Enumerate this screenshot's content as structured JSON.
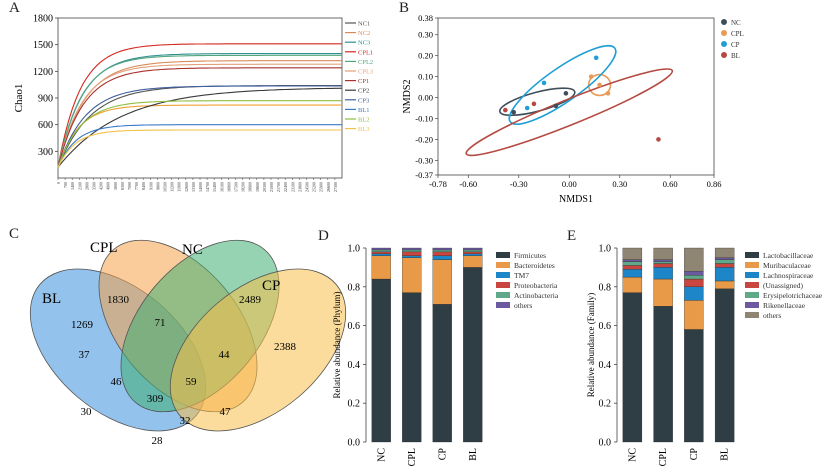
{
  "panel_letters": [
    "A",
    "B",
    "C",
    "D",
    "E"
  ],
  "chart_data": [
    {
      "panel": "A",
      "type": "line",
      "title": "",
      "ylabel": "Chao1",
      "xlabel": "",
      "ylim": [
        0,
        1800
      ],
      "yticks": [
        300,
        600,
        900,
        1200,
        1500,
        1800
      ],
      "x_max": 28000,
      "series": [
        {
          "name": "NC1",
          "plateau": 1040,
          "k": 3200,
          "color": "#555555"
        },
        {
          "name": "NC2",
          "plateau": 1320,
          "k": 2600,
          "color": "#d98a57"
        },
        {
          "name": "NC3",
          "plateau": 1400,
          "k": 2400,
          "color": "#2d8f8f"
        },
        {
          "name": "CPL1",
          "plateau": 1510,
          "k": 2200,
          "color": "#d4281f"
        },
        {
          "name": "CPL2",
          "plateau": 1380,
          "k": 2300,
          "color": "#53a57f"
        },
        {
          "name": "CPL3",
          "plateau": 1280,
          "k": 2400,
          "color": "#e3a07a"
        },
        {
          "name": "CP1",
          "plateau": 1240,
          "k": 2500,
          "color": "#a8322c"
        },
        {
          "name": "CP2",
          "plateau": 1020,
          "k": 6200,
          "color": "#3b3b3b"
        },
        {
          "name": "CP3",
          "plateau": 1035,
          "k": 2700,
          "color": "#3f5f9f"
        },
        {
          "name": "BL1",
          "plateau": 600,
          "k": 1800,
          "color": "#3a7bc8"
        },
        {
          "name": "BL2",
          "plateau": 870,
          "k": 2300,
          "color": "#8fbf3f"
        },
        {
          "name": "BL3",
          "plateau": 540,
          "k": 1700,
          "color": "#f2c24a"
        }
      ],
      "extra_series": [
        {
          "plateau": 820,
          "k": 2000,
          "color": "#f0a030"
        }
      ]
    },
    {
      "panel": "B",
      "type": "scatter",
      "xlabel": "NMDS1",
      "ylabel": "NMDS2",
      "xlim": [
        -0.78,
        0.86
      ],
      "ylim": [
        -0.37,
        0.38
      ],
      "xticks": [
        -0.78,
        -0.6,
        -0.3,
        0.0,
        0.3,
        0.6,
        0.86
      ],
      "xtick_labels": [
        "-0.78",
        "-0.60",
        "-0.30",
        "0.00",
        "0.30",
        "0.60",
        "0.86"
      ],
      "yticks": [
        0.38,
        0.3,
        0.2,
        0.1,
        0.0,
        -0.1,
        -0.2,
        -0.3,
        -0.37
      ],
      "ytick_labels": [
        "0.38",
        "0.30",
        "0.20",
        "0.10",
        "0.00",
        "-0.10",
        "-0.20",
        "-0.30",
        "-0.37"
      ],
      "series": [
        {
          "name": "NC",
          "color": "#3f4f5a",
          "points": [
            [
              -0.33,
              -0.07
            ],
            [
              -0.08,
              -0.04
            ],
            [
              -0.02,
              0.02
            ]
          ],
          "ellipse": {
            "cx": -0.19,
            "cy": -0.02,
            "rx": 0.23,
            "ry": 0.045,
            "angle": -15
          }
        },
        {
          "name": "CPL",
          "color": "#e99a55",
          "points": [
            [
              0.13,
              0.1
            ],
            [
              0.18,
              0.06
            ],
            [
              0.23,
              0.02
            ]
          ],
          "ellipse": {
            "cx": 0.18,
            "cy": 0.06,
            "rx": 0.065,
            "ry": 0.05,
            "angle": 0
          }
        },
        {
          "name": "CP",
          "color": "#1f9fd6",
          "points": [
            [
              -0.15,
              0.07
            ],
            [
              0.16,
              0.19
            ],
            [
              -0.25,
              -0.05
            ]
          ],
          "ellipse": {
            "cx": -0.04,
            "cy": 0.06,
            "rx": 0.38,
            "ry": 0.08,
            "angle": -35
          }
        },
        {
          "name": "BL",
          "color": "#b54a42",
          "points": [
            [
              -0.21,
              -0.03
            ],
            [
              -0.38,
              -0.06
            ],
            [
              0.53,
              -0.2
            ]
          ],
          "ellipse": {
            "cx": 0.0,
            "cy": -0.07,
            "rx": 0.66,
            "ry": 0.06,
            "angle": -22
          }
        }
      ]
    },
    {
      "panel": "C",
      "type": "venn",
      "sets": [
        {
          "name": "BL",
          "color": "#3b8fdc"
        },
        {
          "name": "CPL",
          "color": "#f5a24a"
        },
        {
          "name": "NC",
          "color": "#3fae72"
        },
        {
          "name": "CP",
          "color": "#f7c04a"
        }
      ],
      "counts": {
        "BL": "1269",
        "CPL": "1830",
        "NC": "2489",
        "CP": "2388",
        "BL_CPL": "37",
        "CPL_NC": "71",
        "NC_CP": "44",
        "BL_NC": "30",
        "CPL_CP": "47",
        "BL_CP": "28",
        "BL_CPL_NC": "46",
        "CPL_NC_CP": "59",
        "BL_CPL_CP": "32",
        "all": "309"
      }
    },
    {
      "panel": "D",
      "type": "bar",
      "stacked": true,
      "ylabel": "Relative abundance (Phylum)",
      "ylim": [
        0,
        1.0
      ],
      "yticks": [
        "0.0",
        "0.2",
        "0.4",
        "0.6",
        "0.8",
        "1.0"
      ],
      "categories": [
        "NC",
        "CPL",
        "CP",
        "BL"
      ],
      "series": [
        {
          "name": "Firmicutes",
          "color": "#2f3d45",
          "values": [
            0.84,
            0.77,
            0.71,
            0.9
          ]
        },
        {
          "name": "Bacteroidetes",
          "color": "#e89a48",
          "values": [
            0.12,
            0.18,
            0.23,
            0.06
          ]
        },
        {
          "name": "TM7",
          "color": "#1c86c8",
          "values": [
            0.01,
            0.01,
            0.02,
            0.01
          ]
        },
        {
          "name": "Proteobacteria",
          "color": "#c9453f",
          "values": [
            0.01,
            0.02,
            0.02,
            0.01
          ]
        },
        {
          "name": "Actinobacteria",
          "color": "#5fa88a",
          "values": [
            0.01,
            0.01,
            0.01,
            0.01
          ]
        },
        {
          "name": "others",
          "color": "#6c5aa0",
          "values": [
            0.01,
            0.01,
            0.01,
            0.01
          ]
        }
      ]
    },
    {
      "panel": "E",
      "type": "bar",
      "stacked": true,
      "ylabel": "Relative abundance (Family)",
      "ylim": [
        0,
        1.0
      ],
      "yticks": [
        "0.0",
        "0.2",
        "0.4",
        "0.6",
        "0.8",
        "1.0"
      ],
      "categories": [
        "NC",
        "CPL",
        "CP",
        "BL"
      ],
      "series": [
        {
          "name": "Lactobacillaceae",
          "color": "#2f3d45",
          "values": [
            0.77,
            0.7,
            0.58,
            0.79
          ]
        },
        {
          "name": "Muribaculaceae",
          "color": "#e89a48",
          "values": [
            0.08,
            0.14,
            0.15,
            0.04
          ]
        },
        {
          "name": "Lachnospiraceae",
          "color": "#1c86c8",
          "values": [
            0.04,
            0.06,
            0.07,
            0.07
          ]
        },
        {
          "name": "(Unassigned)",
          "color": "#c9453f",
          "values": [
            0.02,
            0.02,
            0.04,
            0.02
          ]
        },
        {
          "name": "Erysipelotrichaceae",
          "color": "#5fa88a",
          "values": [
            0.02,
            0.01,
            0.02,
            0.02
          ]
        },
        {
          "name": "Rikenellaceae",
          "color": "#6c5aa0",
          "values": [
            0.01,
            0.01,
            0.02,
            0.01
          ]
        },
        {
          "name": "others",
          "color": "#8f8573",
          "values": [
            0.06,
            0.06,
            0.12,
            0.05
          ]
        }
      ]
    }
  ]
}
